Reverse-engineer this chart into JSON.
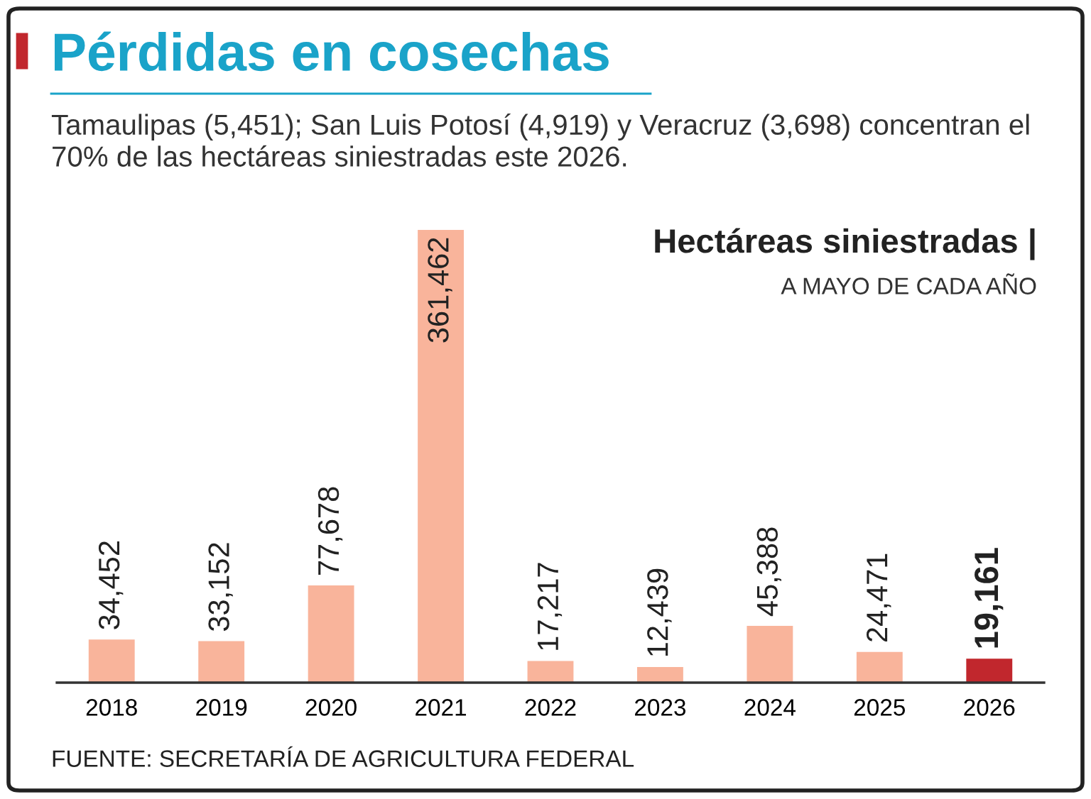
{
  "chart_data": {
    "type": "bar",
    "title": "Pérdidas en cosechas",
    "subtitle": "Tamaulipas (5,451); San Luis Potosí (4,919) y Veracruz (3,698) concentran el 70% de las hectáreas siniestradas este 2026.",
    "ylabel": "Hectáreas siniestradas |",
    "annotations": [
      "A MAYO DE CADA AÑO",
      "FUENTE: SECRETARÍA DE AGRICULTURA FEDERAL"
    ],
    "categories": [
      "2018",
      "2019",
      "2020",
      "2021",
      "2022",
      "2023",
      "2024",
      "2025",
      "2026"
    ],
    "values": [
      34452,
      33152,
      77678,
      361462,
      17217,
      12439,
      45388,
      24471,
      19161
    ],
    "colors": [
      "#f9b49b",
      "#f9b49b",
      "#f9b49b",
      "#f9b49b",
      "#f9b49b",
      "#f9b49b",
      "#f9b49b",
      "#f9b49b",
      "#c1272d"
    ],
    "value_labels": [
      "34,452",
      "33,152",
      "77,678",
      "361,462",
      "17,217",
      "12,439",
      "45,388",
      "24,471",
      "19,161"
    ],
    "grid": false,
    "legend": false
  }
}
